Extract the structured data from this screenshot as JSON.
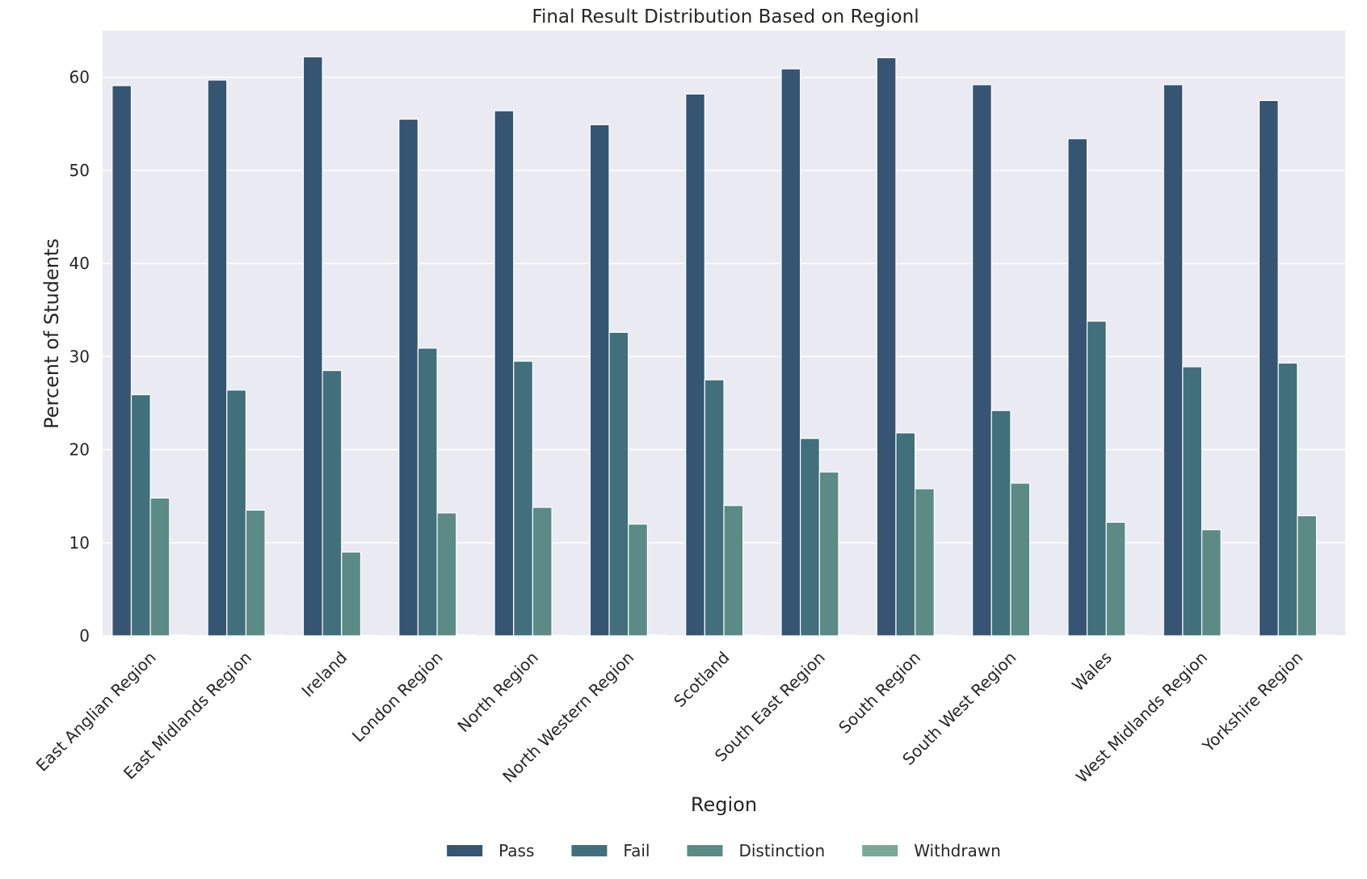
{
  "chart_data": {
    "type": "bar",
    "title": "Final Result Distribution Based on Regionl",
    "xlabel": "Region",
    "ylabel": "Percent of Students",
    "ylim": [
      0,
      65
    ],
    "yticks": [
      0,
      10,
      20,
      30,
      40,
      50,
      60
    ],
    "grid": true,
    "legend_position": "bottom-center",
    "categories": [
      "East Anglian Region",
      "East Midlands Region",
      "Ireland",
      "London Region",
      "North Region",
      "North Western Region",
      "Scotland",
      "South East Region",
      "South Region",
      "South West Region",
      "Wales",
      "West Midlands Region",
      "Yorkshire Region"
    ],
    "series": [
      {
        "name": "Pass",
        "color": "#365573",
        "values": [
          59.1,
          59.7,
          62.2,
          55.5,
          56.4,
          54.9,
          58.2,
          60.9,
          62.1,
          59.2,
          53.4,
          59.2,
          57.5
        ]
      },
      {
        "name": "Fail",
        "color": "#416f7c",
        "values": [
          25.9,
          26.4,
          28.5,
          30.9,
          29.5,
          32.6,
          27.5,
          21.2,
          21.8,
          24.2,
          33.8,
          28.9,
          29.3
        ]
      },
      {
        "name": "Distinction",
        "color": "#5c8a85",
        "values": [
          14.8,
          13.5,
          9.0,
          13.2,
          13.8,
          12.0,
          14.0,
          17.6,
          15.8,
          16.4,
          12.2,
          11.4,
          12.9
        ]
      },
      {
        "name": "Withdrawn",
        "color": "#7ba894",
        "values": [
          0.1,
          0.1,
          0.0,
          0.1,
          0.0,
          0.1,
          0.1,
          0.1,
          0.1,
          0.0,
          0.1,
          0.1,
          0.1
        ]
      }
    ]
  },
  "style": {
    "plot_background": "#eaeaf2",
    "grid_color": "#ffffff",
    "bar_edge_color": "#ffffff"
  }
}
